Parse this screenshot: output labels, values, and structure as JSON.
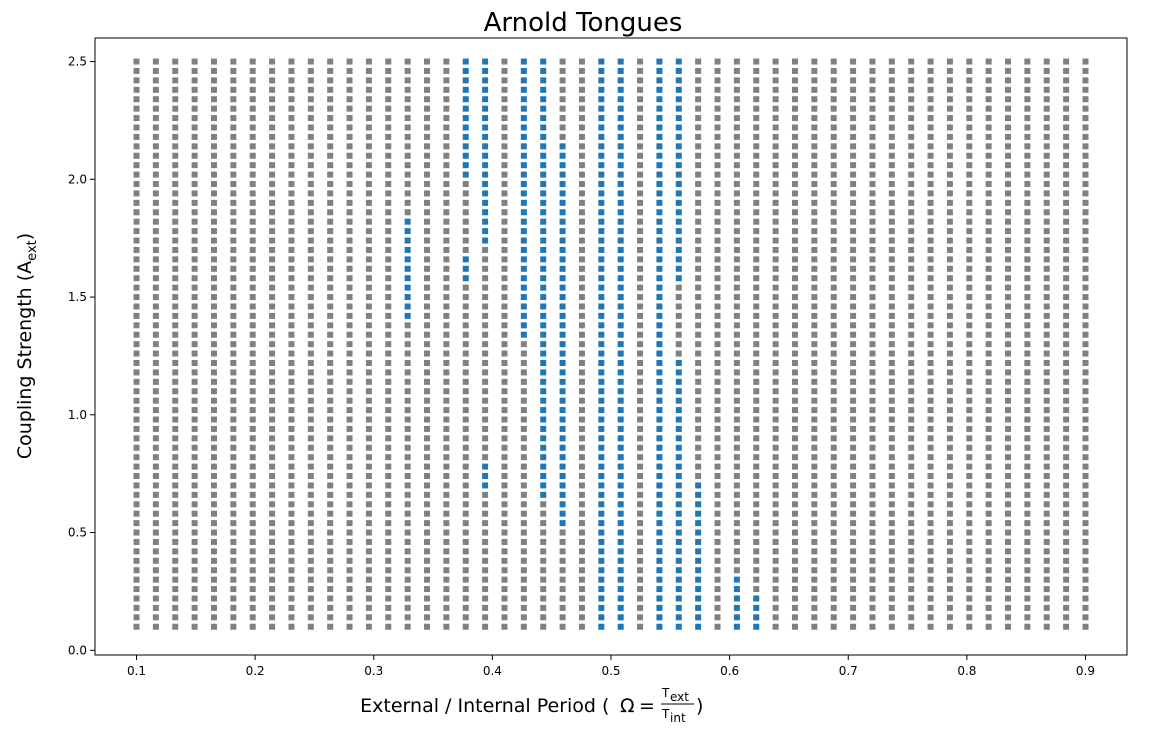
{
  "chart_data": {
    "type": "scatter",
    "title": "Arnold Tongues",
    "xlabel": {
      "prefix": "External / Internal Period",
      "omega": "Ω",
      "equals": "=",
      "num_base": "T",
      "num_sub": "ext",
      "den_base": "T",
      "den_sub": "int"
    },
    "ylabel": {
      "base": "Coupling Strength (A",
      "sub": "ext",
      "suffix": ")"
    },
    "xlim": [
      0.065,
      0.935
    ],
    "ylim": [
      -0.02,
      2.6
    ],
    "xticks": [
      0.1,
      0.2,
      0.3,
      0.4,
      0.5,
      0.6,
      0.7,
      0.8,
      0.9
    ],
    "xtick_labels": [
      "0.1",
      "0.2",
      "0.3",
      "0.4",
      "0.5",
      "0.6",
      "0.7",
      "0.8",
      "0.9"
    ],
    "yticks": [
      0.0,
      0.5,
      1.0,
      1.5,
      2.0,
      2.5
    ],
    "ytick_labels": [
      "0.0",
      "0.5",
      "1.0",
      "1.5",
      "2.0",
      "2.5"
    ],
    "grid": false,
    "x_grid": {
      "start": 0.1,
      "stop": 0.9,
      "count": 50
    },
    "y_grid": {
      "start": 0.1,
      "stop": 2.5,
      "count": 61
    },
    "series": [
      {
        "name": "",
        "color": "#808080",
        "marker": "square",
        "points": "all remaining grid points"
      },
      {
        "name": "",
        "color": "#1f77b4",
        "marker": "square",
        "columns": [
          {
            "x": 0.3286,
            "y_ranges": [
              [
                1.42,
                1.82
              ]
            ]
          },
          {
            "x": 0.3694,
            "y_ranges": [
              [
                1.58,
                1.66
              ],
              [
                2.22,
                2.5
              ]
            ]
          },
          {
            "x": 0.3857,
            "y_ranges": [
              [
                2.02,
                2.5
              ]
            ]
          },
          {
            "x": 0.402,
            "y_ranges": [
              [
                0.7,
                0.78
              ],
              [
                1.74,
                2.5
              ]
            ]
          },
          {
            "x": 0.4184,
            "y_ranges": [
              [
                1.34,
                2.5
              ]
            ]
          },
          {
            "x": 0.4347,
            "y_ranges": [
              [
                1.18,
                2.5
              ]
            ]
          },
          {
            "x": 0.451,
            "y_ranges": [
              [
                0.66,
                1.98
              ],
              [
                2.06,
                2.42
              ]
            ]
          },
          {
            "x": 0.4673,
            "y_ranges": [
              [
                0.54,
                2.14
              ]
            ]
          },
          {
            "x": 0.4837,
            "y_ranges": [
              [
                0.34,
                0.46
              ]
            ]
          },
          {
            "x": 0.5,
            "y_ranges": [
              [
                0.1,
                2.5
              ]
            ]
          },
          {
            "x": 0.5163,
            "y_ranges": [
              [
                0.1,
                2.5
              ]
            ]
          },
          {
            "x": 0.5327,
            "y_ranges": [
              [
                0.1,
                2.5
              ]
            ]
          },
          {
            "x": 0.549,
            "y_ranges": [
              [
                0.1,
                1.22
              ],
              [
                1.58,
                2.5
              ]
            ]
          },
          {
            "x": 0.5653,
            "y_ranges": [
              [
                0.1,
                0.46
              ]
            ]
          },
          {
            "x": 0.5816,
            "y_ranges": [
              [
                0.1,
                0.7
              ]
            ]
          },
          {
            "x": 0.598,
            "y_ranges": [
              [
                0.1,
                0.3
              ]
            ]
          },
          {
            "x": 0.6143,
            "y_ranges": [
              [
                0.1,
                0.22
              ]
            ]
          }
        ]
      }
    ]
  }
}
